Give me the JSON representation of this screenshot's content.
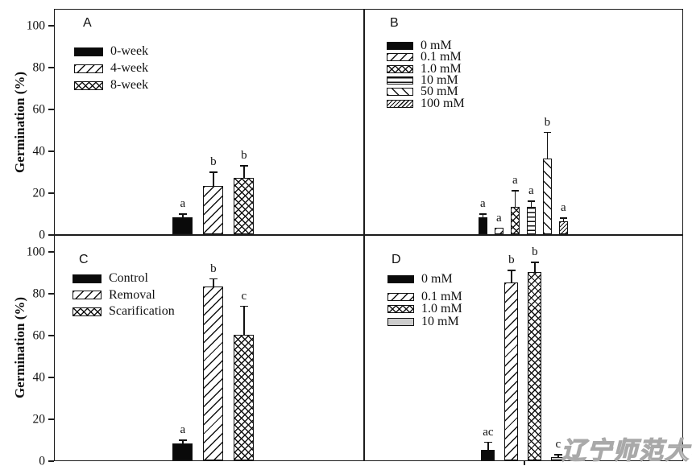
{
  "y_axis": {
    "label": "Germination (%)",
    "ticks": [
      0,
      20,
      40,
      60,
      80,
      100
    ]
  },
  "watermark": {
    "text": "辽宁师范大学",
    "color": "#ababab"
  },
  "chart_data": [
    {
      "panel": "A",
      "type": "bar",
      "ylabel": "Germination (%)",
      "ylim": [
        0,
        100
      ],
      "yticks": [
        0,
        20,
        40,
        60,
        80,
        100
      ],
      "legend_position": "top-left",
      "grid": false,
      "bars": [
        {
          "label": "0-week",
          "pattern": "solid",
          "value": 8,
          "error": 2,
          "sig": "a"
        },
        {
          "label": "4-week",
          "pattern": "diag",
          "value": 23,
          "error": 7,
          "sig": "b"
        },
        {
          "label": "8-week",
          "pattern": "cross",
          "value": 27,
          "error": 6,
          "sig": "b"
        }
      ]
    },
    {
      "panel": "B",
      "type": "bar",
      "ylabel": "Germination (%)",
      "ylim": [
        0,
        100
      ],
      "yticks": [
        0,
        20,
        40,
        60,
        80,
        100
      ],
      "legend_position": "top-left",
      "grid": false,
      "bars": [
        {
          "label": "0 mM",
          "pattern": "solid",
          "value": 8,
          "error": 2,
          "sig": "a"
        },
        {
          "label": "0.1 mM",
          "pattern": "diag",
          "value": 3,
          "error": 0,
          "sig": "a"
        },
        {
          "label": "1.0 mM",
          "pattern": "cross",
          "value": 13,
          "error": 8,
          "sig": "a"
        },
        {
          "label": "10 mM",
          "pattern": "hlines",
          "value": 13,
          "error": 3,
          "sig": "a"
        },
        {
          "label": "50 mM",
          "pattern": "backdiag",
          "value": 36,
          "error": 13,
          "sig": "b"
        },
        {
          "label": "100 mM",
          "pattern": "densediag",
          "value": 6,
          "error": 2,
          "sig": "a"
        }
      ]
    },
    {
      "panel": "C",
      "type": "bar",
      "ylabel": "Germination (%)",
      "ylim": [
        0,
        100
      ],
      "yticks": [
        0,
        20,
        40,
        60,
        80,
        100
      ],
      "legend_position": "top-left",
      "grid": false,
      "bars": [
        {
          "label": "Control",
          "pattern": "solid",
          "value": 8,
          "error": 2,
          "sig": "a"
        },
        {
          "label": "Removal",
          "pattern": "diag",
          "value": 83,
          "error": 4,
          "sig": "b"
        },
        {
          "label": "Scarification",
          "pattern": "cross",
          "value": 60,
          "error": 14,
          "sig": "c"
        }
      ]
    },
    {
      "panel": "D",
      "type": "bar",
      "ylabel": "Germination (%)",
      "ylim": [
        0,
        100
      ],
      "yticks": [
        0,
        20,
        40,
        60,
        80,
        100
      ],
      "legend_position": "top-left",
      "grid": false,
      "bars": [
        {
          "label": "0 mM",
          "pattern": "solid",
          "value": 5,
          "error": 4,
          "sig": "ac"
        },
        {
          "label": "0.1 mM",
          "pattern": "diag",
          "value": 85,
          "error": 6,
          "sig": "b"
        },
        {
          "label": "1.0 mM",
          "pattern": "cross",
          "value": 90,
          "error": 5,
          "sig": "b"
        },
        {
          "label": "10 mM",
          "pattern": "gray",
          "value": 1.5,
          "error": 1.5,
          "sig": "c"
        }
      ]
    }
  ]
}
